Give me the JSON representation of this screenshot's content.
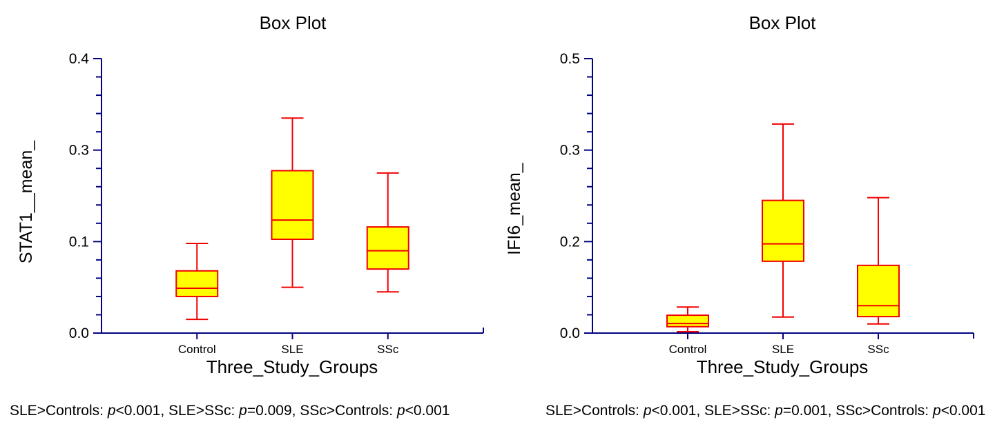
{
  "figure": {
    "background": "#ffffff"
  },
  "colors": {
    "axis": "#000080",
    "box_fill": "#ffff00",
    "box_border": "#f20000",
    "whisker": "#f20000",
    "text": "#000000"
  },
  "chart_data": [
    {
      "type": "box",
      "title": "Box Plot",
      "ylabel": "STAT1__mean_",
      "xlabel": "Three_Study_Groups",
      "categories": [
        "Control",
        "SLE",
        "SSc"
      ],
      "y_axis": {
        "tick_values": [
          0.0,
          0.1,
          0.3,
          0.4
        ],
        "tick_labels": [
          "0.0",
          "0.1",
          "0.3",
          "0.4"
        ],
        "minor_ticks_per_segment": 4,
        "ylim": [
          0.0,
          0.4
        ]
      },
      "series": [
        {
          "category": "Control",
          "min": 0.015,
          "q1": 0.04,
          "median": 0.049,
          "q3": 0.068,
          "max": 0.098
        },
        {
          "category": "SLE",
          "min": 0.05,
          "q1": 0.105,
          "median": 0.147,
          "q3": 0.255,
          "max": 0.335
        },
        {
          "category": "SSc",
          "min": 0.045,
          "q1": 0.07,
          "median": 0.09,
          "q3": 0.132,
          "max": 0.25
        }
      ],
      "annotation": [
        {
          "t": "SLE>Controls: "
        },
        {
          "t": "p",
          "i": true
        },
        {
          "t": "<0.001, SLE>SSc: "
        },
        {
          "t": "p",
          "i": true
        },
        {
          "t": "=0.009, SSc>Controls: "
        },
        {
          "t": "p",
          "i": true
        },
        {
          "t": "<0.001"
        }
      ]
    },
    {
      "type": "box",
      "title": "Box Plot",
      "ylabel": "IFI6_mean_",
      "xlabel": "Three_Study_Groups",
      "categories": [
        "Control",
        "SLE",
        "SSc"
      ],
      "y_axis": {
        "tick_values": [
          0.0,
          0.2,
          0.3,
          0.5
        ],
        "tick_labels": [
          "0.0",
          "0.2",
          "0.3",
          "0.5"
        ],
        "minor_ticks_per_segment": 4,
        "ylim": [
          0.0,
          0.5
        ]
      },
      "series": [
        {
          "category": "Control",
          "min": 0.003,
          "q1": 0.014,
          "median": 0.021,
          "q3": 0.039,
          "max": 0.057
        },
        {
          "category": "SLE",
          "min": 0.035,
          "q1": 0.157,
          "median": 0.195,
          "q3": 0.245,
          "max": 0.357
        },
        {
          "category": "SSc",
          "min": 0.02,
          "q1": 0.036,
          "median": 0.06,
          "q3": 0.148,
          "max": 0.248
        }
      ],
      "annotation": [
        {
          "t": "SLE>Controls: "
        },
        {
          "t": "p",
          "i": true
        },
        {
          "t": "<0.001, SLE>SSc: "
        },
        {
          "t": "p",
          "i": true
        },
        {
          "t": "=0.001, SSc>Controls: "
        },
        {
          "t": "p",
          "i": true
        },
        {
          "t": "<0.001"
        }
      ]
    }
  ]
}
